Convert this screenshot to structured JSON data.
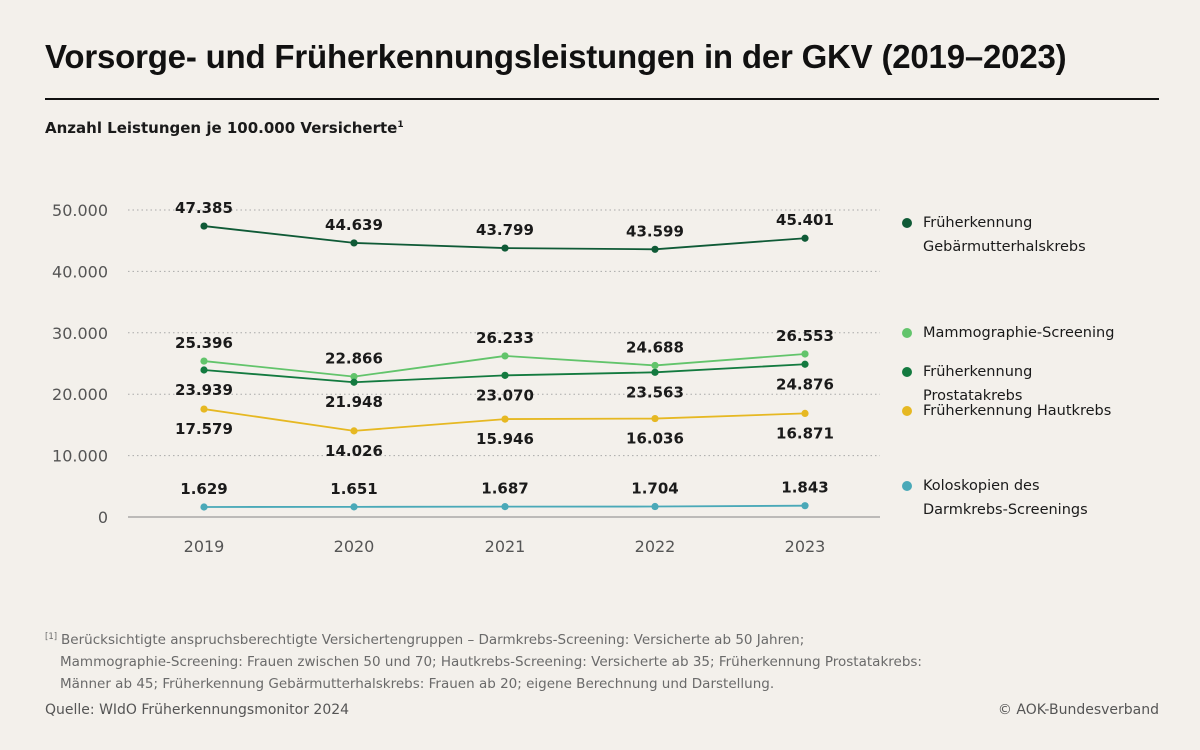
{
  "title": "Vorsorge- und Früherkennungsleistungen in der GKV (2019–2023)",
  "subtitle": "Anzahl Leistungen je 100.000 Versicherte",
  "subtitle_mark": "1",
  "chart_data": {
    "type": "line",
    "x": [
      "2019",
      "2020",
      "2021",
      "2022",
      "2023"
    ],
    "ylim": [
      0,
      50000
    ],
    "yticks": [
      0,
      10000,
      20000,
      30000,
      40000,
      50000
    ],
    "ytick_labels": [
      "0",
      "10.000",
      "20.000",
      "30.000",
      "40.000",
      "50.000"
    ],
    "grid": "horizontal dotted",
    "legend_position": "right",
    "series": [
      {
        "name": "Früherkennung\nGebärmutterhalskrebs",
        "color": "#0f5a36",
        "values": [
          47385,
          44639,
          43799,
          43599,
          45401
        ],
        "labels": [
          "47.385",
          "44.639",
          "43.799",
          "43.599",
          "45.401"
        ],
        "label_side": "above"
      },
      {
        "name": "Mammographie-Screening",
        "color": "#62c46b",
        "values": [
          25396,
          22866,
          26233,
          24688,
          26553
        ],
        "labels": [
          "25.396",
          "22.866",
          "26.233",
          "24.688",
          "26.553"
        ],
        "label_side": "above"
      },
      {
        "name": "Früherkennung Prostatakrebs",
        "color": "#137a3f",
        "values": [
          23939,
          21948,
          23070,
          23563,
          24876
        ],
        "labels": [
          "23.939",
          "21.948",
          "23.070",
          "23.563",
          "24.876"
        ],
        "label_side": "below"
      },
      {
        "name": "Früherkennung Hautkrebs",
        "color": "#e6b822",
        "values": [
          17579,
          14026,
          15946,
          16036,
          16871
        ],
        "labels": [
          "17.579",
          "14.026",
          "15.946",
          "16.036",
          "16.871"
        ],
        "label_side": "below"
      },
      {
        "name": "Koloskopien des\nDarmkrebs-Screenings",
        "color": "#4aa9b8",
        "values": [
          1629,
          1651,
          1687,
          1704,
          1843
        ],
        "labels": [
          "1.629",
          "1.651",
          "1.687",
          "1.704",
          "1.843"
        ],
        "label_side": "above"
      }
    ]
  },
  "footnote": {
    "mark": "[1]",
    "line1": "Berücksichtigte anspruchsberechtigte Versichertengruppen – Darmkrebs-Screening: Versicherte ab 50 Jahren;",
    "line2": "Mammographie-Screening: Frauen zwischen 50 und 70; Hautkrebs-Screening: Versicherte ab 35; Früherkennung Prostatakrebs:",
    "line3": "Männer ab 45; Früherkennung Gebärmutterhalskrebs: Frauen ab 20; eigene Berechnung und Darstellung."
  },
  "source": "Quelle: WIdO Früherkennungsmonitor 2024",
  "copyright": "© AOK-Bundesverband"
}
